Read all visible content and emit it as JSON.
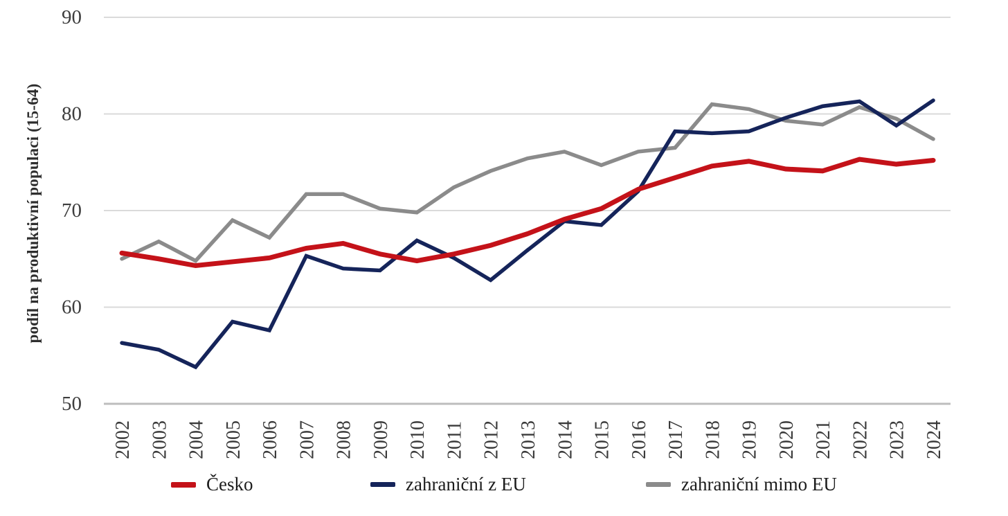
{
  "chart_data": {
    "type": "line",
    "title": "",
    "xlabel": "",
    "ylabel": "podíl na produktivní populaci (15-64)",
    "ylim": [
      50,
      90
    ],
    "yticks": [
      50,
      60,
      70,
      80,
      90
    ],
    "grid": "horizontal",
    "legend_position": "bottom",
    "x": [
      2002,
      2003,
      2004,
      2005,
      2006,
      2007,
      2008,
      2009,
      2010,
      2011,
      2012,
      2013,
      2014,
      2015,
      2016,
      2017,
      2018,
      2019,
      2020,
      2021,
      2022,
      2023,
      2024
    ],
    "series": [
      {
        "name": "Česko",
        "color": "#c41219",
        "line_width": 7,
        "values": [
          65.6,
          65.0,
          64.3,
          64.7,
          65.1,
          66.1,
          66.6,
          65.5,
          64.8,
          65.5,
          66.4,
          67.6,
          69.1,
          70.2,
          72.2,
          73.4,
          74.6,
          75.1,
          74.3,
          74.1,
          75.3,
          74.8,
          75.2
        ]
      },
      {
        "name": "zahraniční z EU",
        "color": "#15245a",
        "line_width": 5.5,
        "values": [
          56.3,
          55.6,
          53.8,
          58.5,
          57.6,
          65.3,
          64.0,
          63.8,
          66.9,
          65.1,
          62.8,
          65.9,
          68.9,
          68.5,
          72.0,
          78.2,
          78.0,
          78.2,
          79.6,
          80.8,
          81.3,
          78.8,
          81.4
        ]
      },
      {
        "name": "zahraniční mimo EU",
        "color": "#8b8b8b",
        "line_width": 5.5,
        "values": [
          65.0,
          66.8,
          64.8,
          69.0,
          67.2,
          71.7,
          71.7,
          70.2,
          69.8,
          72.4,
          74.1,
          75.4,
          76.1,
          74.7,
          76.1,
          76.5,
          81.0,
          80.5,
          79.3,
          78.9,
          80.7,
          79.5,
          77.4
        ]
      }
    ]
  },
  "colors": {
    "background": "#ffffff",
    "gridline": "#dadada",
    "bottom_axis": "#bdbdbd",
    "tick_text": "#3d3d3d",
    "axis_title_text": "#2e2e2e",
    "legend_text": "#1c1c1c"
  }
}
